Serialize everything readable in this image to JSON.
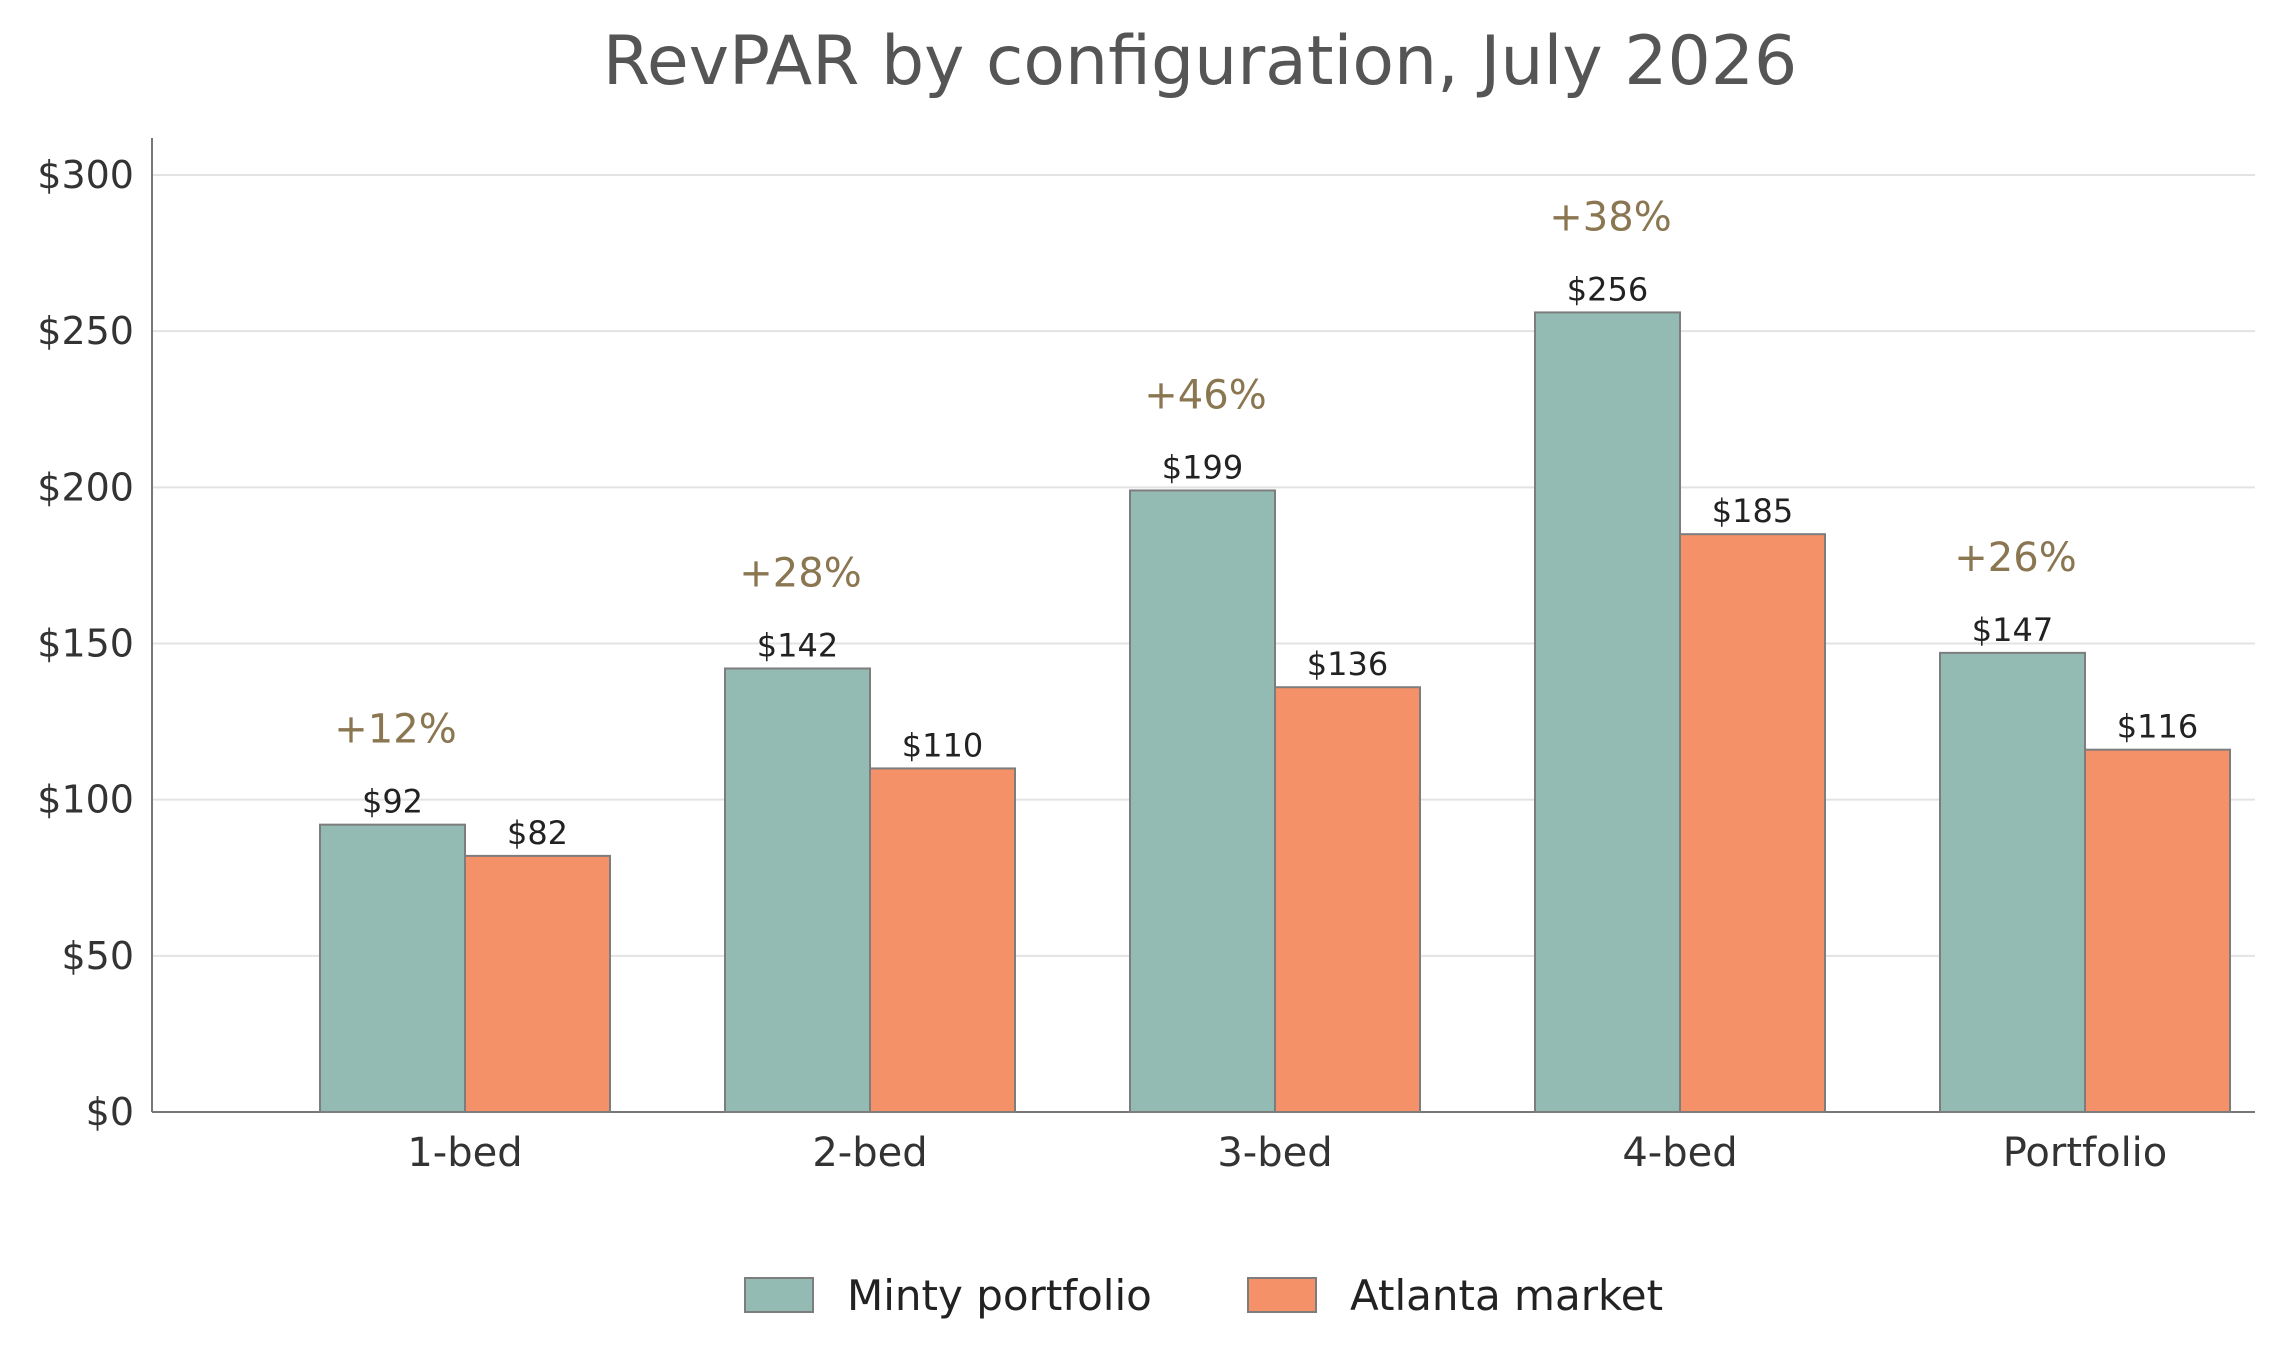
{
  "chart_data": {
    "type": "bar",
    "title": "RevPAR by configuration, July 2026",
    "xlabel": "",
    "ylabel": "",
    "ylim": [
      0,
      310
    ],
    "y_ticks": [
      0,
      50,
      100,
      150,
      200,
      250,
      300
    ],
    "y_tick_labels": [
      "$0",
      "$50",
      "$100",
      "$150",
      "$200",
      "$250",
      "$300"
    ],
    "grid": true,
    "legend_position": "bottom-center",
    "categories": [
      "1-bed",
      "2-bed",
      "3-bed",
      "4-bed",
      "Portfolio"
    ],
    "series": [
      {
        "name": "Minty portfolio",
        "color": "#94bab4",
        "values": [
          92,
          142,
          199,
          256,
          147
        ],
        "labels": [
          "$92",
          "$142",
          "$199",
          "$256",
          "$147"
        ]
      },
      {
        "name": "Atlanta market",
        "color": "#f59168",
        "values": [
          82,
          110,
          136,
          185,
          116
        ],
        "labels": [
          "$82",
          "$110",
          "$136",
          "$185",
          "$116"
        ]
      }
    ],
    "uplift_labels": [
      "+12%",
      "+28%",
      "+46%",
      "+38%",
      "+26%"
    ],
    "uplift_color": "#8a7650"
  }
}
